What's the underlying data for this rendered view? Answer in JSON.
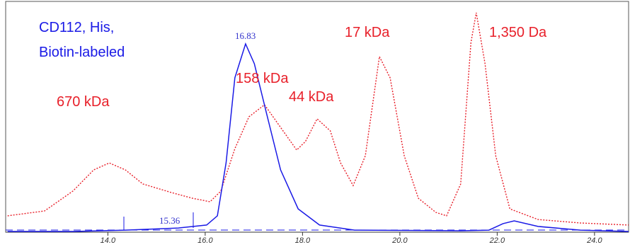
{
  "chart_data": {
    "type": "line",
    "xlim": [
      11.9,
      24.7
    ],
    "ylim": [
      0,
      100
    ],
    "xticks": [
      {
        "value": 14,
        "label": "14.0"
      },
      {
        "value": 16,
        "label": "16.0"
      },
      {
        "value": 18,
        "label": "18.0"
      },
      {
        "value": 20,
        "label": "20.0"
      },
      {
        "value": 22,
        "label": "22.0"
      },
      {
        "value": 24,
        "label": "24.0"
      }
    ],
    "series": [
      {
        "color": "#e8202a",
        "style": "dotted",
        "x": [
          11.94,
          12.7,
          13.28,
          13.71,
          14.03,
          14.36,
          14.72,
          15.3,
          15.74,
          16.1,
          16.32,
          16.61,
          16.9,
          17.22,
          17.55,
          17.88,
          18.06,
          18.3,
          18.57,
          18.78,
          19.04,
          19.29,
          19.58,
          19.8,
          20.09,
          20.38,
          20.74,
          20.96,
          21.25,
          21.46,
          21.57,
          21.75,
          21.97,
          22.26,
          22.84,
          23.71,
          24.7
        ],
        "values": [
          7.1,
          9.2,
          17.8,
          27,
          30,
          27,
          20.9,
          17.2,
          14.7,
          13.2,
          17.8,
          36.2,
          50,
          55.2,
          45.4,
          35.6,
          39.3,
          49.1,
          43.9,
          30.1,
          20.2,
          33.1,
          76.1,
          66.9,
          33.1,
          14.7,
          8.6,
          7.1,
          20.9,
          82.2,
          95.1,
          73,
          33.1,
          10.1,
          5.5,
          4,
          3.1
        ]
      },
      {
        "color": "#1a1ae6",
        "style": "solid",
        "x": [
          11.94,
          13.28,
          14.36,
          15.45,
          16.03,
          16.25,
          16.43,
          16.61,
          16.83,
          17.01,
          17.26,
          17.55,
          17.91,
          18.35,
          19.07,
          21.25,
          21.83,
          22.12,
          22.35,
          22.84,
          23.71,
          24.7
        ],
        "values": [
          0.3,
          0.3,
          0.9,
          1.8,
          3.1,
          7.1,
          30.1,
          66.9,
          81.6,
          73,
          51.5,
          27,
          10.1,
          3.1,
          0.9,
          0.6,
          0.9,
          3.7,
          4.9,
          2.5,
          0.9,
          0.3
        ]
      }
    ],
    "annotations": [
      {
        "text": "CD112, His,",
        "color": "#1a1ae6"
      },
      {
        "text": "Biotin-labeled",
        "color": "#1a1ae6"
      },
      {
        "text": "670 kDa",
        "color": "#e8202a"
      },
      {
        "text": "158 kDa",
        "color": "#e8202a"
      },
      {
        "text": "44 kDa",
        "color": "#e8202a"
      },
      {
        "text": "17 kDa",
        "color": "#e8202a"
      },
      {
        "text": "1,350 Da",
        "color": "#e8202a"
      }
    ],
    "peak_labels": [
      "16.83",
      "15.36"
    ]
  }
}
